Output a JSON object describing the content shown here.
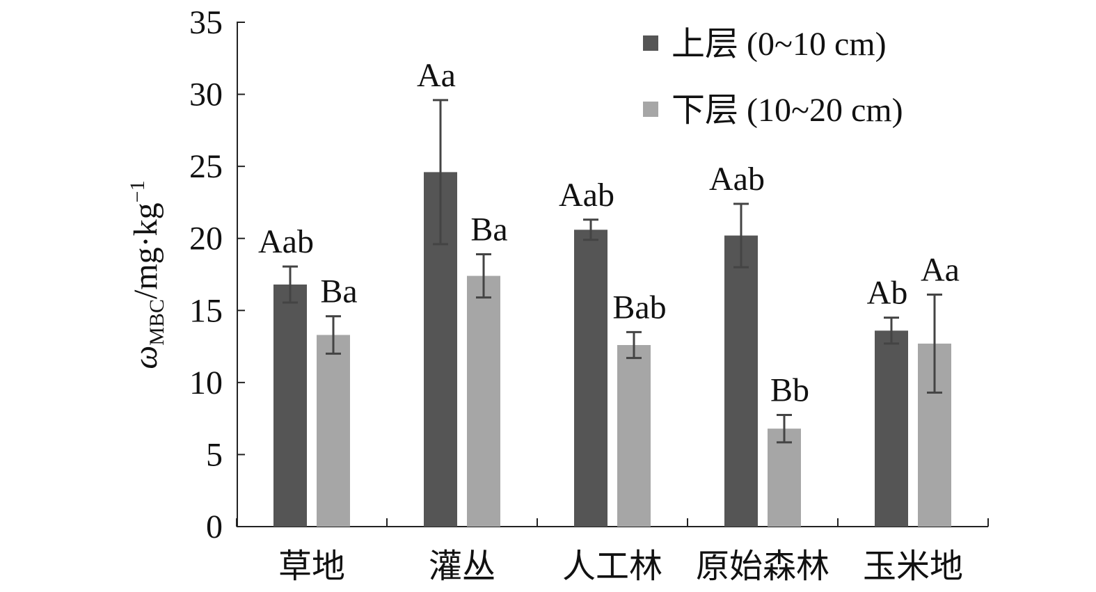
{
  "chart_data": {
    "type": "bar",
    "y_label": {
      "symbol": "ω",
      "subscript": "MBC",
      "unit": "/mg·kg",
      "superscript": "−1"
    },
    "categories": [
      "草地",
      "灌丛",
      "人工林",
      "原始森林",
      "玉米地"
    ],
    "series": [
      {
        "name": "上层 (0~10 cm)",
        "color": "#555555",
        "values": [
          16.8,
          24.6,
          20.6,
          20.2,
          13.6
        ],
        "errors": [
          1.25,
          5.0,
          0.7,
          2.2,
          0.9
        ],
        "labels": [
          "Aab",
          "Aa",
          "Aab",
          "Aab",
          "Ab"
        ]
      },
      {
        "name": "下层 (10~20 cm)",
        "color": "#a6a6a6",
        "values": [
          13.3,
          17.4,
          12.6,
          6.8,
          12.7
        ],
        "errors": [
          1.3,
          1.5,
          0.9,
          0.95,
          3.4
        ],
        "labels": [
          "Ba",
          "Ba",
          "Bab",
          "Bb",
          "Aa"
        ]
      }
    ],
    "ylim": [
      0,
      35
    ],
    "yticks": [
      0,
      5,
      10,
      15,
      20,
      25,
      30,
      35
    ],
    "grid": false,
    "legend": "top-right"
  }
}
